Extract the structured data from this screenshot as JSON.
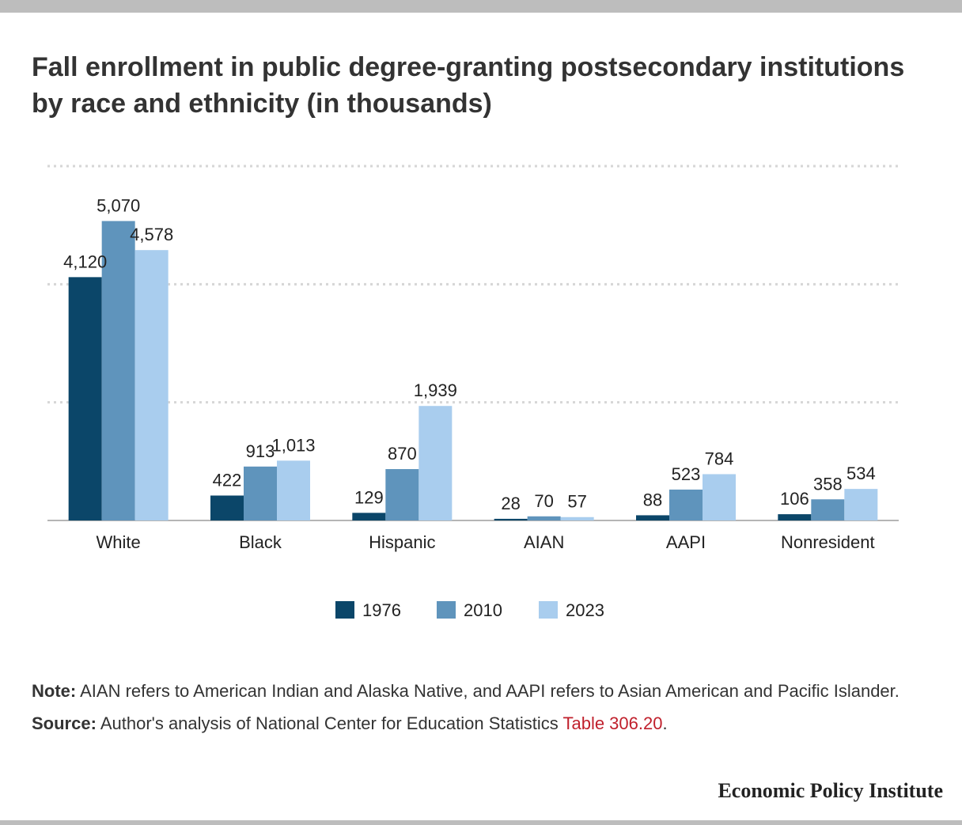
{
  "title": "Fall enrollment in public degree-granting postsecondary institutions by race and ethnicity (in thousands)",
  "chart_data": {
    "type": "bar",
    "title": "Fall enrollment in public degree-granting postsecondary institutions by race and ethnicity (in thousands)",
    "categories": [
      "White",
      "Black",
      "Hispanic",
      "AIAN",
      "AAPI",
      "Nonresident"
    ],
    "series": [
      {
        "name": "1976",
        "color": "#0b4669",
        "values": [
          4120,
          422,
          129,
          28,
          88,
          106
        ],
        "labels": [
          "4,120",
          "422",
          "129",
          "28",
          "88",
          "106"
        ]
      },
      {
        "name": "2010",
        "color": "#5f94bc",
        "values": [
          5070,
          913,
          870,
          70,
          523,
          358
        ],
        "labels": [
          "5,070",
          "913",
          "870",
          "70",
          "523",
          "358"
        ]
      },
      {
        "name": "2023",
        "color": "#a9cdee",
        "values": [
          4578,
          1013,
          1939,
          57,
          784,
          534
        ],
        "labels": [
          "4,578",
          "1,013",
          "1,939",
          "57",
          "784",
          "534"
        ]
      }
    ],
    "ylim": [
      0,
      6000
    ],
    "grid": true,
    "legend": "bottom-center",
    "xlabel": "",
    "ylabel": ""
  },
  "notes": {
    "note_label": "Note:",
    "note_text": " AIAN refers to American Indian and Alaska Native, and AAPI refers to Asian American and Pacific Islander.",
    "source_label": "Source:",
    "source_text": " Author's analysis of National Center for Education Statistics ",
    "source_link": "Table 306.20",
    "source_end": "."
  },
  "brand": "Economic Policy Institute"
}
